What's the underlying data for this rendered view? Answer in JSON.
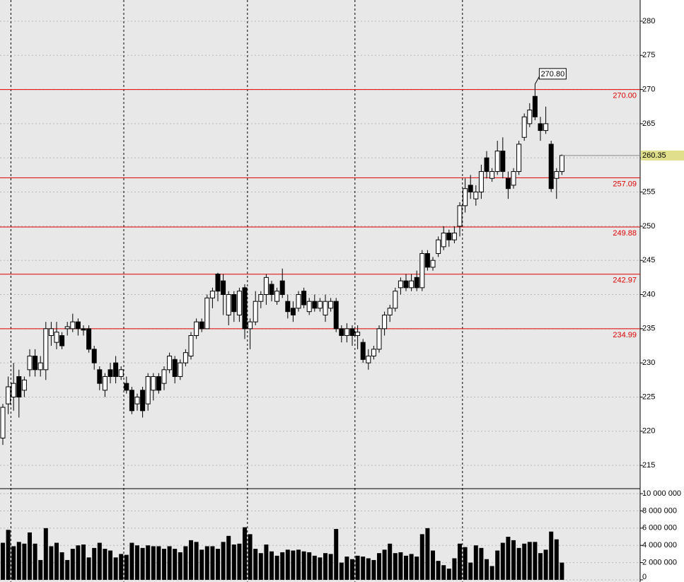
{
  "chart_data": {
    "type": "candlestick",
    "open": [
      219,
      224,
      225,
      228,
      226,
      229,
      231,
      229,
      229,
      234,
      233,
      234,
      235,
      235,
      236,
      235,
      235,
      232,
      229,
      226,
      229,
      230,
      228,
      227,
      226,
      224,
      226,
      224,
      226,
      228,
      227,
      229,
      230.5,
      228,
      230,
      231,
      234,
      236,
      235,
      239.5,
      243,
      242,
      237,
      240,
      237,
      241,
      235,
      236,
      239,
      240,
      241.5,
      239,
      242,
      239,
      238,
      238,
      240.5,
      237.5,
      239,
      238,
      237,
      238,
      239,
      235,
      234,
      235,
      234,
      233,
      230,
      231,
      232,
      235,
      237,
      238,
      241,
      242,
      241,
      242.5,
      241,
      246,
      244,
      246,
      247,
      249,
      248,
      250,
      253,
      256,
      254,
      255,
      260,
      257,
      258,
      261,
      257,
      256,
      258,
      263,
      265,
      269,
      265,
      264,
      262,
      257,
      258
    ],
    "high": [
      224,
      228,
      230,
      229,
      228,
      232,
      232,
      231,
      236,
      236,
      236,
      234.5,
      236,
      237.2,
      236.5,
      235.5,
      235.5,
      232.5,
      229.5,
      228.5,
      230,
      231,
      229.5,
      228,
      226.5,
      225.5,
      226.5,
      228.5,
      228.5,
      228.5,
      229.5,
      231.5,
      231,
      230.5,
      232,
      234.5,
      236.5,
      236.5,
      240,
      241,
      243.2,
      243,
      240.5,
      240.5,
      241,
      241.5,
      236.5,
      240.5,
      240.5,
      243,
      242,
      241,
      243.8,
      240,
      239,
      240.5,
      241,
      239.5,
      240,
      239.5,
      240,
      239.5,
      239.5,
      235.5,
      235.8,
      235.5,
      235.5,
      233.5,
      232,
      232.5,
      235.5,
      237.5,
      238.5,
      241,
      242.5,
      243,
      243,
      243.5,
      246.5,
      246.5,
      245.5,
      248.5,
      250,
      249.5,
      250,
      253.5,
      257,
      257.5,
      256,
      259,
      261,
      258.5,
      262.5,
      263,
      258,
      258.5,
      262.5,
      266.5,
      268,
      270.8,
      266,
      267.5,
      262.5,
      258.5,
      260.5
    ],
    "low": [
      218,
      222.5,
      223,
      222,
      225,
      228,
      228,
      228,
      227.5,
      232.5,
      232,
      232,
      234,
      234.5,
      234,
      234,
      231.5,
      229,
      226,
      225,
      227,
      227,
      227.5,
      225.5,
      222.5,
      223,
      222,
      223,
      224.5,
      225.5,
      226,
      228.5,
      227,
      227.5,
      229.5,
      230.5,
      233.5,
      234.5,
      235,
      238,
      239,
      237,
      235.5,
      236,
      236,
      233.5,
      232,
      235.5,
      238,
      238.5,
      239,
      238.5,
      239.5,
      236.5,
      236,
      237.5,
      238,
      237,
      237.5,
      237.5,
      236,
      237.5,
      234.5,
      233,
      233,
      232.5,
      232,
      230,
      229,
      230.5,
      231.5,
      234,
      236,
      237.5,
      240,
      240.5,
      240.5,
      240.5,
      240.5,
      243.5,
      243.5,
      245.5,
      246.5,
      247,
      247.5,
      248.5,
      252,
      254,
      253,
      254,
      257,
      256.5,
      257.5,
      257,
      254,
      255.5,
      257.5,
      262.5,
      264.5,
      265.5,
      262.5,
      263.5,
      255,
      254,
      257.5
    ],
    "close": [
      223.5,
      226.5,
      227,
      225,
      227.5,
      231,
      229,
      230,
      235,
      235,
      234.5,
      232.5,
      235.3,
      236,
      235,
      234.8,
      232,
      230,
      227,
      228,
      228,
      228,
      229,
      226,
      223,
      225,
      223,
      228,
      228,
      226,
      229,
      231,
      228,
      230,
      231.5,
      234,
      236,
      235,
      239.5,
      240.5,
      240.5,
      240,
      240,
      237.5,
      240.5,
      235,
      236,
      239,
      240,
      242.5,
      240,
      240.5,
      240,
      237.5,
      237,
      240,
      238.5,
      239,
      238,
      239,
      239,
      239,
      235,
      234,
      235,
      234,
      234.5,
      230.5,
      231,
      232,
      235,
      237,
      238,
      240.5,
      242,
      241,
      242,
      241,
      246,
      244,
      245,
      248,
      249,
      248,
      249,
      253,
      255.5,
      255,
      255,
      258,
      258,
      258,
      261,
      258,
      255.5,
      258,
      262,
      266,
      267,
      266,
      264,
      265,
      255.5,
      258,
      260.35
    ],
    "ylim": [
      211.7,
      283.1
    ],
    "yticks": [
      215,
      220,
      225,
      230,
      235,
      240,
      245,
      250,
      255,
      260,
      265,
      270,
      275,
      280
    ],
    "levels": [
      {
        "value": 270,
        "label": "270.00"
      },
      {
        "value": 257.09,
        "label": "257.09"
      },
      {
        "value": 249.88,
        "label": "249.88"
      },
      {
        "value": 242.97,
        "label": "242.97"
      },
      {
        "value": 234.99,
        "label": "234.99"
      }
    ],
    "level_color": "#e00000",
    "annotation": {
      "value": 270.8,
      "label": "270.80"
    },
    "last_price": {
      "value": 260.35,
      "label": "260.35"
    },
    "period_breaks": [
      2,
      23,
      46,
      66,
      86
    ],
    "grid": true,
    "volume": {
      "color": "#000000",
      "values": [
        4300000,
        5800000,
        3900000,
        4400000,
        4200000,
        5500000,
        4200000,
        2300000,
        6000000,
        3900000,
        4300000,
        3200000,
        2300000,
        3600000,
        4000000,
        4100000,
        2600000,
        3700000,
        4300000,
        3600000,
        3400000,
        2600000,
        3000000,
        2900000,
        4300000,
        4000000,
        3700000,
        4000000,
        3900000,
        3900000,
        3600000,
        3900000,
        3600000,
        3200000,
        3900000,
        4600000,
        4400000,
        3500000,
        3900000,
        3900000,
        3600000,
        4400000,
        5100000,
        4100000,
        4200000,
        6100000,
        5300000,
        3600000,
        3100000,
        4100000,
        3300000,
        2800000,
        3200000,
        3500000,
        3400000,
        3500000,
        3300000,
        3200000,
        2800000,
        2600000,
        3100000,
        3000000,
        5900000,
        2000000,
        2700000,
        2400000,
        2800000,
        2700000,
        2500000,
        2300000,
        3100000,
        3500000,
        4200000,
        3100000,
        3200000,
        2800000,
        3000000,
        2700000,
        5300000,
        6000000,
        3400000,
        2200000,
        1700000,
        1300000,
        2500000,
        4200000,
        3800000,
        2000000,
        4000000,
        3700000,
        2400000,
        1600000,
        3400000,
        4300000,
        5000000,
        4600000,
        3700000,
        4200000,
        4400000,
        4400000,
        3100000,
        3500000,
        5600000,
        4700000,
        2000000
      ],
      "ylim": [
        -250000,
        10500000
      ],
      "yticks": [
        0,
        {
          "value": 2000000,
          "label": "2 000 000"
        },
        {
          "value": 4000000,
          "label": "4 000 000"
        },
        {
          "value": 6000000,
          "label": "6 000 000"
        },
        {
          "value": 8000000,
          "label": "8 000 000"
        },
        {
          "value": 10000000,
          "label": "10 000 000"
        }
      ]
    }
  }
}
